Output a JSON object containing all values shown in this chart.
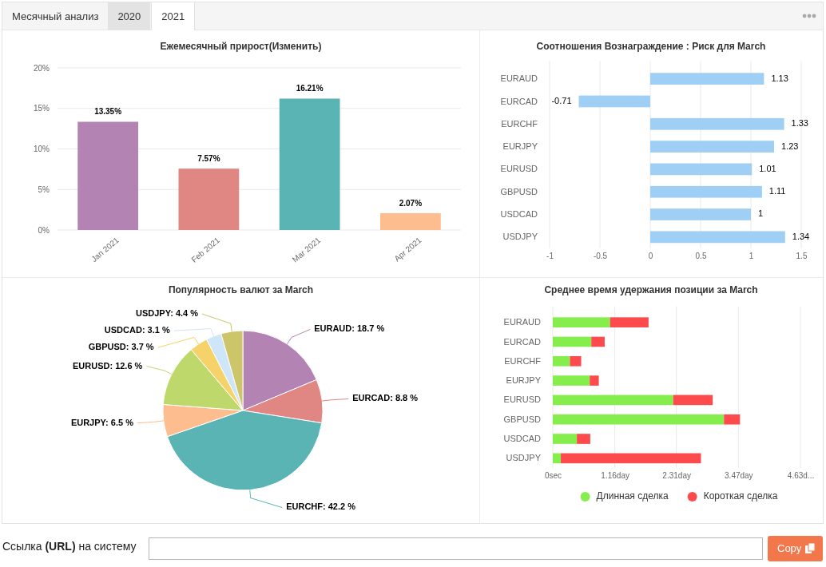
{
  "chart_data": [
    {
      "type": "other",
      "annotations": [
        "Месячный анализ",
        "2020",
        "2021"
      ]
    },
    {
      "type": "bar",
      "title": "Ежемесячный прирост(Изменить)",
      "categories": [
        "Jan 2021",
        "Feb 2021",
        "Mar 2021",
        "Apr 2021"
      ],
      "values": [
        13.35,
        7.57,
        16.21,
        2.07
      ],
      "colors": [
        "#b283b3",
        "#e08683",
        "#5bb4b4",
        "#fdbd8f"
      ],
      "value_labels": [
        "13.35%",
        "7.57%",
        "16.21%",
        "2.07%"
      ],
      "ylim": [
        0,
        20
      ],
      "yticks": [
        {
          "value": 0,
          "label": "0%"
        },
        {
          "value": 5,
          "label": "5%"
        },
        {
          "value": 10,
          "label": "10%"
        },
        {
          "value": 15,
          "label": "15%"
        },
        {
          "value": 20,
          "label": "20%"
        }
      ],
      "grid": "y"
    },
    {
      "type": "bar",
      "orientation": "horizontal",
      "title": "Соотношения Вознаграждение : Риск для March",
      "categories": [
        "EURAUD",
        "EURCAD",
        "EURCHF",
        "EURJPY",
        "EURUSD",
        "GBPUSD",
        "USDCAD",
        "USDJPY"
      ],
      "values": [
        1.13,
        -0.71,
        1.33,
        1.23,
        1.01,
        1.11,
        1,
        1.34
      ],
      "color": "#9fcff4",
      "xlim": [
        -1,
        1.5
      ],
      "xticks": [
        -1,
        -0.5,
        0,
        0.5,
        1,
        1.5
      ],
      "grid": "x",
      "data_labels": true
    },
    {
      "type": "pie",
      "title": "Популярность валют за March",
      "categories": [
        "EURAUD",
        "EURCAD",
        "EURCHF",
        "EURJPY",
        "EURUSD",
        "GBPUSD",
        "USDCAD",
        "USDJPY"
      ],
      "values": [
        18.7,
        8.8,
        42.2,
        6.5,
        12.6,
        3.7,
        3.1,
        4.4
      ],
      "colors": [
        "#b283b3",
        "#e08683",
        "#5bb4b4",
        "#fdbd8f",
        "#bfd86c",
        "#f5d26a",
        "#cfe5f8",
        "#cdc569"
      ],
      "value_labels": [
        "18.7 %",
        "8.8 %",
        "42.2 %",
        "6.5 %",
        "12.6 %",
        "3.7 %",
        "3.1 %",
        "4.4 %"
      ]
    },
    {
      "type": "bar",
      "orientation": "horizontal",
      "stacked": true,
      "title": "Среднее время удержания позиции за March",
      "categories": [
        "EURAUD",
        "EURCAD",
        "EURCHF",
        "EURJPY",
        "EURUSD",
        "GBPUSD",
        "USDCAD",
        "USDJPY"
      ],
      "series": [
        {
          "name": "Длинная сделка",
          "color": "#86ee4c",
          "values": [
            1.07,
            0.72,
            0.32,
            0.69,
            2.25,
            3.2,
            0.45,
            0.15
          ]
        },
        {
          "name": "Короткая сделка",
          "color": "#fc4a4d",
          "values": [
            0.72,
            0.25,
            0.21,
            0.17,
            0.74,
            0.3,
            0.25,
            2.62
          ]
        }
      ],
      "xlim": [
        0,
        4.63
      ],
      "xticks": [
        {
          "value": 0,
          "label": "0sec"
        },
        {
          "value": 1.16,
          "label": "1.16day"
        },
        {
          "value": 2.31,
          "label": "2.31day"
        },
        {
          "value": 3.47,
          "label": "3.47day"
        },
        {
          "value": 4.63,
          "label": "4.63d..."
        }
      ],
      "grid": "x",
      "legend": "bottom"
    },
    {
      "type": "other",
      "annotations": [
        "Ссылка (URL) на систему",
        "Copy"
      ]
    }
  ]
}
